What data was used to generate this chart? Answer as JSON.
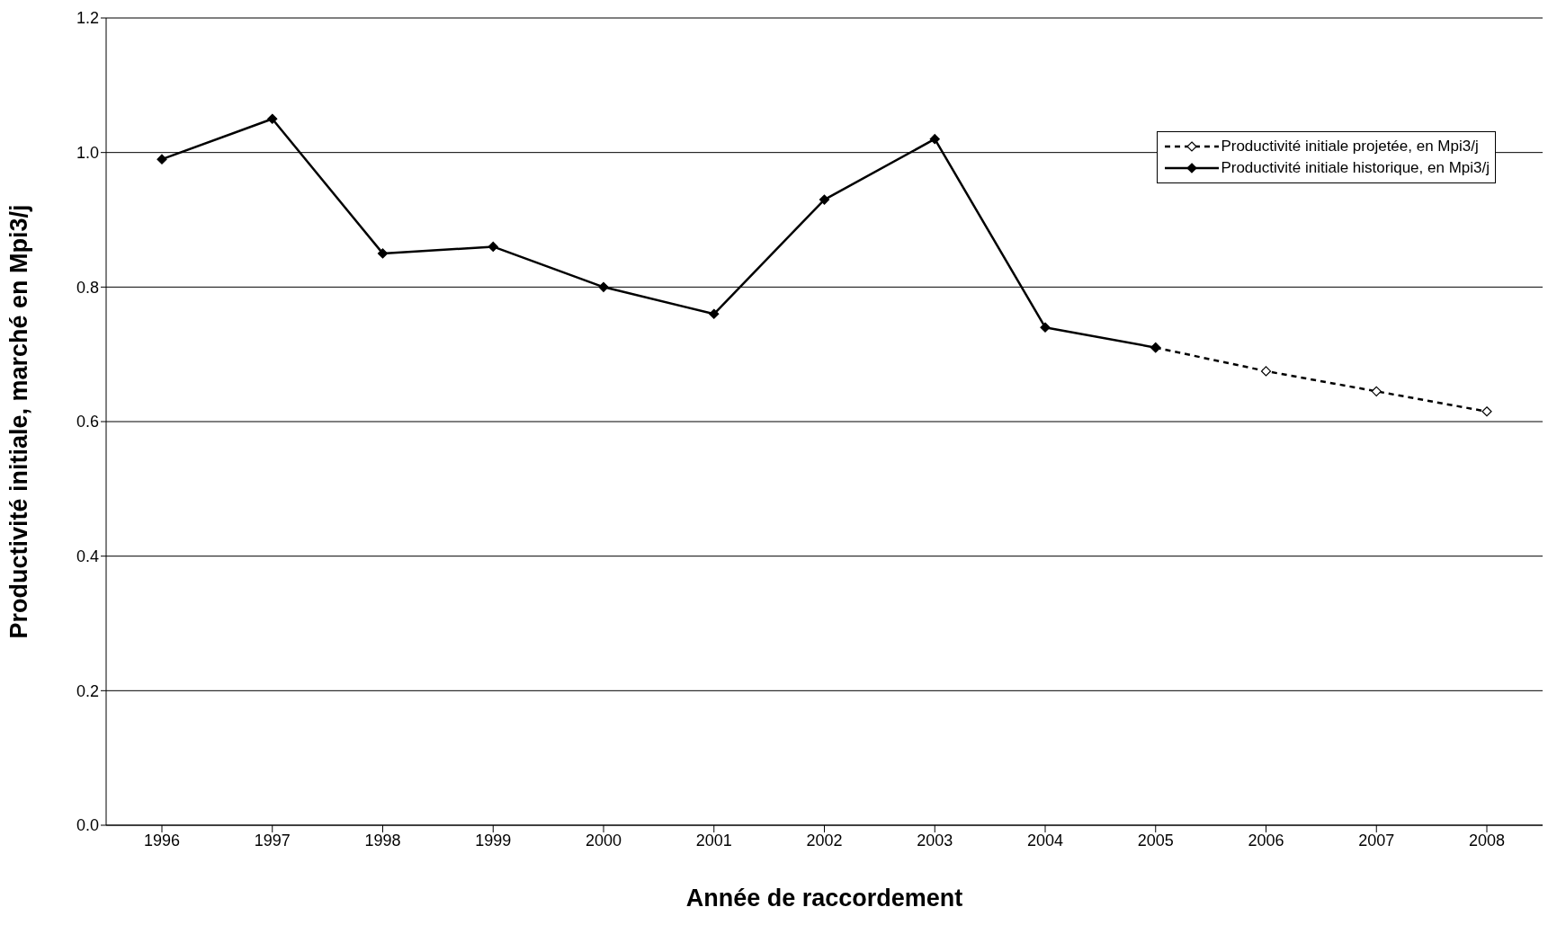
{
  "chart_data": {
    "type": "line",
    "xlabel": "Année de raccordement",
    "ylabel": "Productivité initiale, marché en Mpi3/j",
    "categories": [
      "1996",
      "1997",
      "1998",
      "1999",
      "2000",
      "2001",
      "2002",
      "2003",
      "2004",
      "2005",
      "2006",
      "2007",
      "2008"
    ],
    "series": [
      {
        "name": "Productivité initiale projetée, en Mpi3/j",
        "color": "#000000",
        "line_style": "dashed",
        "values": [
          null,
          null,
          null,
          null,
          null,
          null,
          null,
          null,
          null,
          0.71,
          0.675,
          0.645,
          0.615
        ]
      },
      {
        "name": "Productivité initiale historique, en Mpi3/j",
        "color": "#000000",
        "line_style": "solid",
        "values": [
          0.99,
          1.05,
          0.85,
          0.86,
          0.8,
          0.76,
          0.93,
          1.02,
          0.74,
          0.71,
          null,
          null,
          null
        ]
      }
    ],
    "ylim": [
      0,
      1.2
    ],
    "yticks": [
      {
        "value": 0,
        "label": "0.0"
      },
      0.2,
      0.4,
      0.6,
      0.8,
      {
        "value": 1,
        "label": "1.0"
      },
      1.2
    ],
    "grid": "y",
    "legend": "top right",
    "marker": "diamond"
  }
}
